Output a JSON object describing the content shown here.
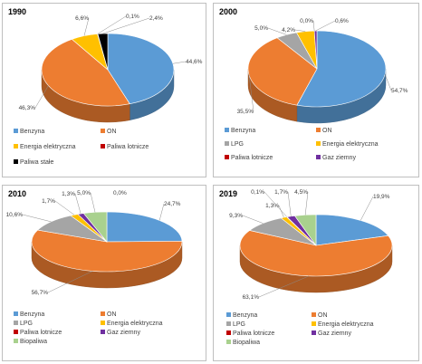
{
  "colors": {
    "Benzyna": "#5b9bd5",
    "ON": "#ed7d31",
    "LPG": "#a5a5a5",
    "Energia elektryczna": "#ffc000",
    "Paliwa lotnicze": "#c00000",
    "Gaz ziemny": "#7030a0",
    "Paliwa stałe": "#000000",
    "Biopaliwa": "#a9d18e"
  },
  "chart_data": [
    {
      "type": "pie",
      "title": "1990",
      "categories": [
        "Benzyna",
        "ON",
        "Energia elektryczna",
        "Paliwa lotnicze",
        "Paliwa stałe"
      ],
      "values": [
        44.6,
        46.3,
        6.6,
        0.1,
        2.4
      ],
      "labels": [
        "44,6%",
        "46,3%",
        "6,6%",
        "0,1%",
        "2,4%"
      ],
      "legend": [
        "Benzyna",
        "ON",
        "Energia elektryczna",
        "Paliwa lotnicze",
        "Paliwa stałe"
      ]
    },
    {
      "type": "pie",
      "title": "2000",
      "categories": [
        "Benzyna",
        "ON",
        "LPG",
        "Energia elektryczna",
        "Paliwa lotnicze",
        "Gaz ziemny"
      ],
      "values": [
        54.7,
        35.5,
        5.0,
        4.2,
        0.0,
        0.6
      ],
      "labels": [
        "54,7%",
        "35,5%",
        "5,0%",
        "4,2%",
        "0,0%",
        "0,6%"
      ],
      "legend": [
        "Benzyna",
        "ON",
        "LPG",
        "Energia elektryczna",
        "Paliwa lotnicze",
        "Gaz ziemny"
      ]
    },
    {
      "type": "pie",
      "title": "2010",
      "categories": [
        "Benzyna",
        "ON",
        "LPG",
        "Energia elektryczna",
        "Paliwa lotnicze",
        "Gaz ziemny",
        "Biopaliwa"
      ],
      "values": [
        24.7,
        56.7,
        10.6,
        1.7,
        0.0,
        1.3,
        5.0
      ],
      "labels": [
        "24,7%",
        "56,7%",
        "10,6%",
        "1,7%",
        "",
        "1,3%",
        "5,0%"
      ],
      "extra_labels": [
        "0,0%"
      ],
      "legend": [
        "Benzyna",
        "ON",
        "LPG",
        "Energia elektryczna",
        "Paliwa lotnicze",
        "Gaz ziemny",
        "Biopaliwa"
      ]
    },
    {
      "type": "pie",
      "title": "2019",
      "categories": [
        "Benzyna",
        "ON",
        "LPG",
        "Energia elektryczna",
        "Paliwa lotnicze",
        "Gaz ziemny",
        "Biopaliwa"
      ],
      "values": [
        19.9,
        63.1,
        9.3,
        1.3,
        0.1,
        1.7,
        4.5
      ],
      "labels": [
        "19,9%",
        "63,1%",
        "9,3%",
        "1,3%",
        "0,1%",
        "1,7%",
        "4,5%"
      ],
      "legend": [
        "Benzyna",
        "ON",
        "LPG",
        "Energia elektryczna",
        "Paliwa lotnicze",
        "Gaz ziemny",
        "Biopaliwa"
      ]
    }
  ]
}
